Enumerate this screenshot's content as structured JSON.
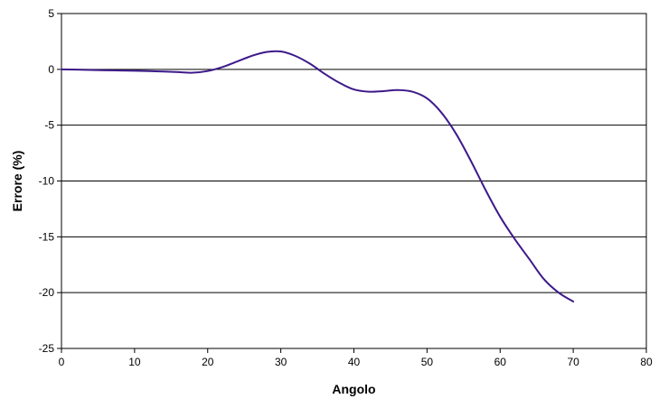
{
  "chart_data": {
    "type": "line",
    "title": "",
    "xlabel": "Angolo",
    "ylabel": "Errore (%)",
    "xlim": [
      0,
      80
    ],
    "ylim": [
      -25,
      5
    ],
    "xticks": [
      0,
      10,
      20,
      30,
      40,
      50,
      60,
      70,
      80
    ],
    "yticks": [
      5,
      0,
      -5,
      -10,
      -15,
      -20,
      -25
    ],
    "grid": "horizontal",
    "legend": "none",
    "series": [
      {
        "color": "#3d1a8a",
        "x": [
          0,
          2,
          4,
          6,
          8,
          10,
          12,
          14,
          16,
          18,
          20,
          22,
          24,
          26,
          28,
          30,
          32,
          34,
          36,
          38,
          40,
          42,
          44,
          46,
          48,
          50,
          52,
          54,
          56,
          58,
          60,
          62,
          64,
          66,
          68,
          70
        ],
        "y": [
          0.0,
          -0.02,
          -0.05,
          -0.08,
          -0.1,
          -0.12,
          -0.15,
          -0.2,
          -0.25,
          -0.3,
          -0.15,
          0.2,
          0.7,
          1.2,
          1.55,
          1.6,
          1.2,
          0.5,
          -0.4,
          -1.2,
          -1.8,
          -2.0,
          -1.95,
          -1.85,
          -2.0,
          -2.6,
          -3.9,
          -5.8,
          -8.2,
          -10.8,
          -13.2,
          -15.2,
          -17.0,
          -18.8,
          -20.0,
          -20.8
        ]
      }
    ]
  }
}
